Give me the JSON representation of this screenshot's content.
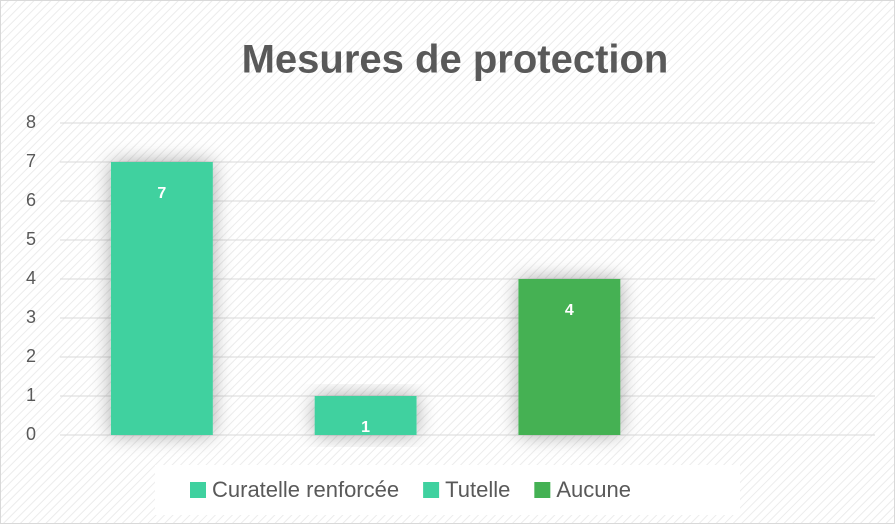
{
  "chart_data": {
    "type": "bar",
    "title": "Mesures de protection",
    "series": [
      {
        "name": "Curatelle renforcée",
        "color": "#3fd19f",
        "values": [
          7
        ]
      },
      {
        "name": "Tutelle",
        "color": "#3fd19f",
        "values": [
          1
        ]
      },
      {
        "name": "Aucune",
        "color": "#44b153",
        "values": [
          4
        ]
      }
    ],
    "ylim": [
      0,
      8
    ],
    "yticks": [
      0,
      1,
      2,
      3,
      4,
      5,
      6,
      7,
      8
    ],
    "grid": true,
    "legend": "bottom"
  }
}
